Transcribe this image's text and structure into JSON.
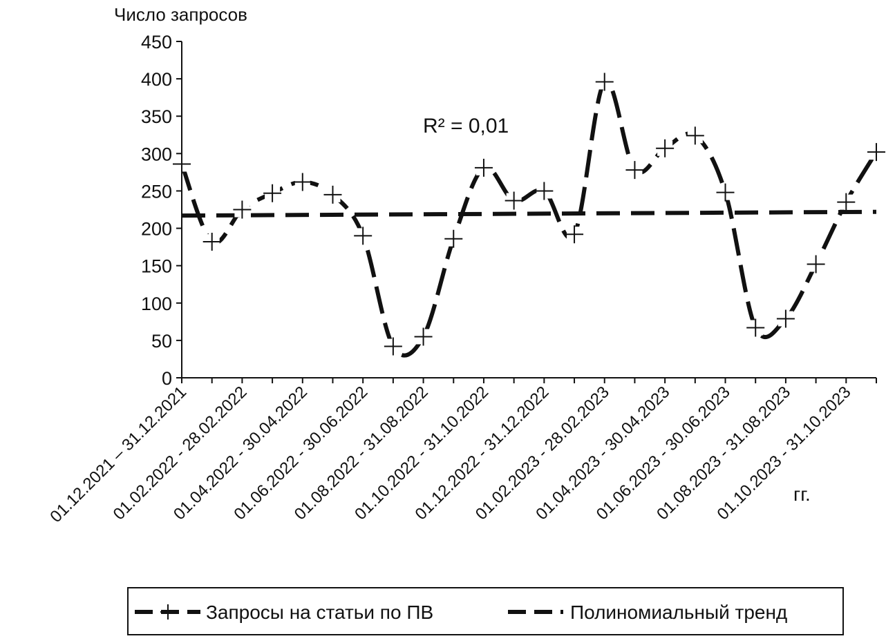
{
  "chart_data": {
    "type": "line",
    "ylabel": "Число запросов",
    "xlabel": "гг.",
    "ylim": [
      0,
      450
    ],
    "yticks": [
      0,
      50,
      100,
      150,
      200,
      250,
      300,
      350,
      400,
      450
    ],
    "grid": false,
    "legend_position": "bottom",
    "annotation": "R² = 0,01",
    "tick_labels": [
      "01.12.2021 – 31.12.2021",
      "01.02.2022 - 28.02.2022",
      "01.04.2022 - 30.04.2022",
      "01.06.2022 - 30.06.2022",
      "01.08.2022 - 31.08.2022",
      "01.10.2022 - 31.10.2022",
      "01.12.2022 - 31.12.2022",
      "01.02.2023 - 28.02.2023",
      "01.04.2023 - 30.04.2023",
      "01.06.2023 - 30.06.2023",
      "01.08.2023 - 31.08.2023",
      "01.10.2023 - 31.10.2023"
    ],
    "series": [
      {
        "name": "Запросы на статьи по ПВ",
        "style": "dashed-with-plus-markers",
        "color": "#111111",
        "values": [
          286,
          182,
          225,
          247,
          262,
          245,
          190,
          42,
          55,
          186,
          281,
          237,
          250,
          192,
          396,
          278,
          307,
          324,
          248,
          67,
          79,
          152,
          235,
          302
        ]
      },
      {
        "name": "Полиномиальный тренд",
        "style": "dashed",
        "color": "#111111",
        "values": [
          217,
          222
        ]
      }
    ]
  }
}
